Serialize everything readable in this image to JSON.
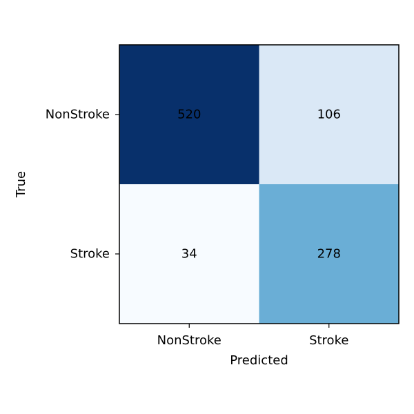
{
  "chart_data": {
    "type": "heatmap",
    "title": "",
    "xlabel": "Predicted",
    "ylabel": "True",
    "x_categories": [
      "NonStroke",
      "Stroke"
    ],
    "y_categories": [
      "NonStroke",
      "Stroke"
    ],
    "values": [
      [
        520,
        106
      ],
      [
        34,
        278
      ]
    ],
    "colormap": "Blues",
    "colors": {
      "low": "#f7fbff",
      "high": "#08306b"
    },
    "value_range": [
      34,
      520
    ],
    "grid": false,
    "legend": "none"
  }
}
